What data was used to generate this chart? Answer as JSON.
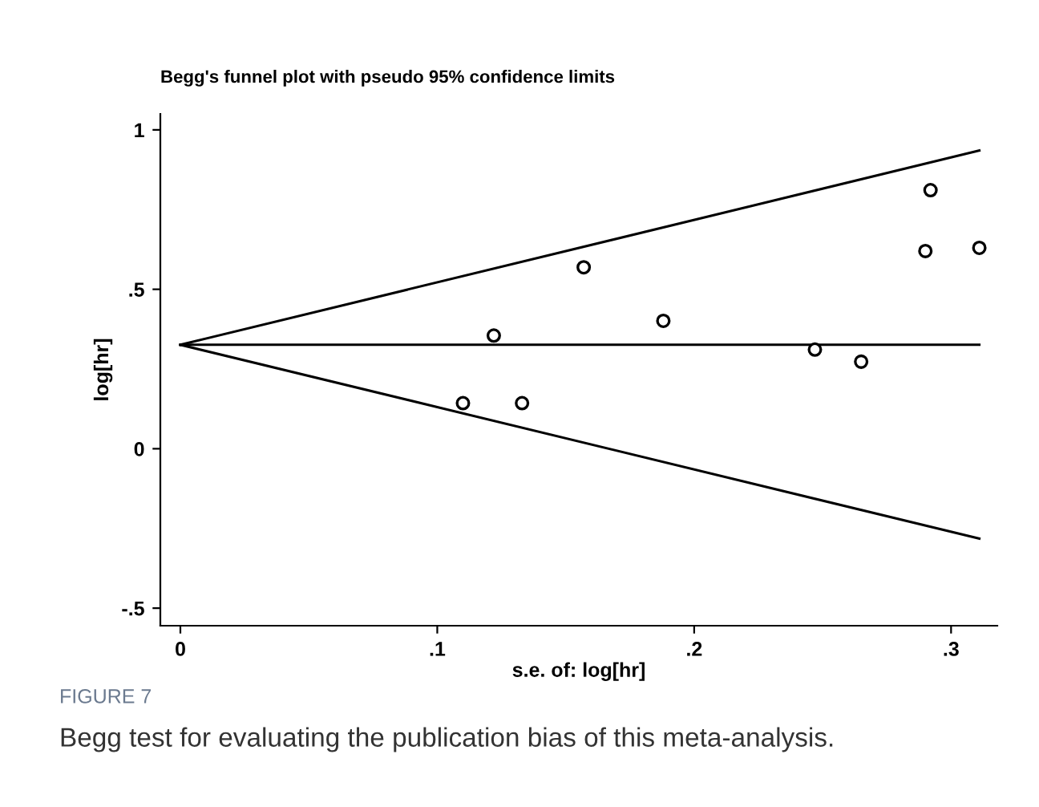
{
  "chart_data": {
    "type": "scatter",
    "title": "Begg's funnel plot with pseudo 95% confidence limits",
    "xlabel": "s.e. of: log[hr]",
    "ylabel": "log[hr]",
    "annotations": [
      "FIGURE 7",
      "Begg test for evaluating the publication bias of this meta-analysis."
    ],
    "series": [
      {
        "color": "#000000",
        "marker": "circle",
        "x": [
          0.11,
          0.122,
          0.133,
          0.157,
          0.188,
          0.247,
          0.265,
          0.29,
          0.292,
          0.311
        ],
        "values": [
          0.143,
          0.355,
          0.143,
          0.569,
          0.401,
          0.311,
          0.273,
          0.62,
          0.811,
          0.63
        ]
      },
      {
        "type": "line",
        "color": "#000000",
        "marker": "none",
        "x": [
          0,
          0.311
        ],
        "values": [
          0.326,
          0.935
        ]
      },
      {
        "type": "line",
        "color": "#000000",
        "marker": "none",
        "x": [
          0,
          0.311
        ],
        "values": [
          0.326,
          0.326
        ]
      },
      {
        "type": "line",
        "color": "#000000",
        "marker": "none",
        "x": [
          0,
          0.311
        ],
        "values": [
          0.326,
          -0.282
        ]
      }
    ],
    "xlim": [
      -0.0078,
      0.318
    ],
    "ylim": [
      -0.555,
      1.05
    ],
    "xticks": [
      {
        "value": 0,
        "label": "0"
      },
      {
        "value": 0.1,
        "label": ".1"
      },
      {
        "value": 0.2,
        "label": ".2"
      },
      {
        "value": 0.3,
        "label": ".3"
      }
    ],
    "yticks": [
      {
        "value": -0.5,
        "label": "-.5"
      },
      {
        "value": 0,
        "label": "0"
      },
      {
        "value": 0.5,
        "label": ".5"
      },
      {
        "value": 1,
        "label": "1"
      }
    ],
    "grid": false,
    "legend": false
  }
}
